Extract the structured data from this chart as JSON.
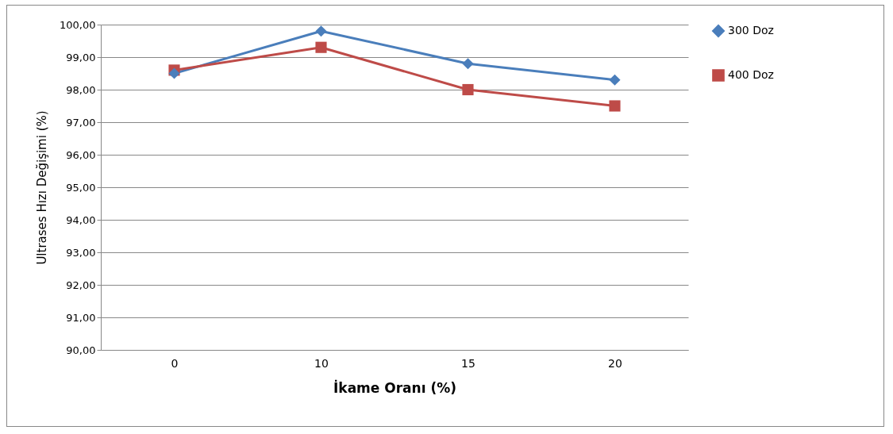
{
  "chart_data": {
    "type": "line",
    "xlabel": "İkame Oranı (%)",
    "ylabel": "Ultrases Hızı Değişimi (%)",
    "categories": [
      "0",
      "10",
      "15",
      "20"
    ],
    "series": [
      {
        "name": "300 Doz",
        "color": "#4a7ebb",
        "marker": "diamond",
        "values": [
          98.5,
          99.8,
          98.8,
          98.3
        ]
      },
      {
        "name": "400 Doz",
        "color": "#be4b48",
        "marker": "square",
        "values": [
          98.6,
          99.3,
          98.0,
          97.5
        ]
      }
    ],
    "ylim": [
      90,
      100
    ],
    "yticks": [
      {
        "value": 90,
        "label": "90,00"
      },
      {
        "value": 91,
        "label": "91,00"
      },
      {
        "value": 92,
        "label": "92,00"
      },
      {
        "value": 93,
        "label": "93,00"
      },
      {
        "value": 94,
        "label": "94,00"
      },
      {
        "value": 95,
        "label": "95,00"
      },
      {
        "value": 96,
        "label": "96,00"
      },
      {
        "value": 97,
        "label": "97,00"
      },
      {
        "value": 98,
        "label": "98,00"
      },
      {
        "value": 99,
        "label": "99,00"
      },
      {
        "value": 100,
        "label": "100,00"
      }
    ],
    "grid": "y",
    "legend": "right",
    "line_style": "solid"
  }
}
